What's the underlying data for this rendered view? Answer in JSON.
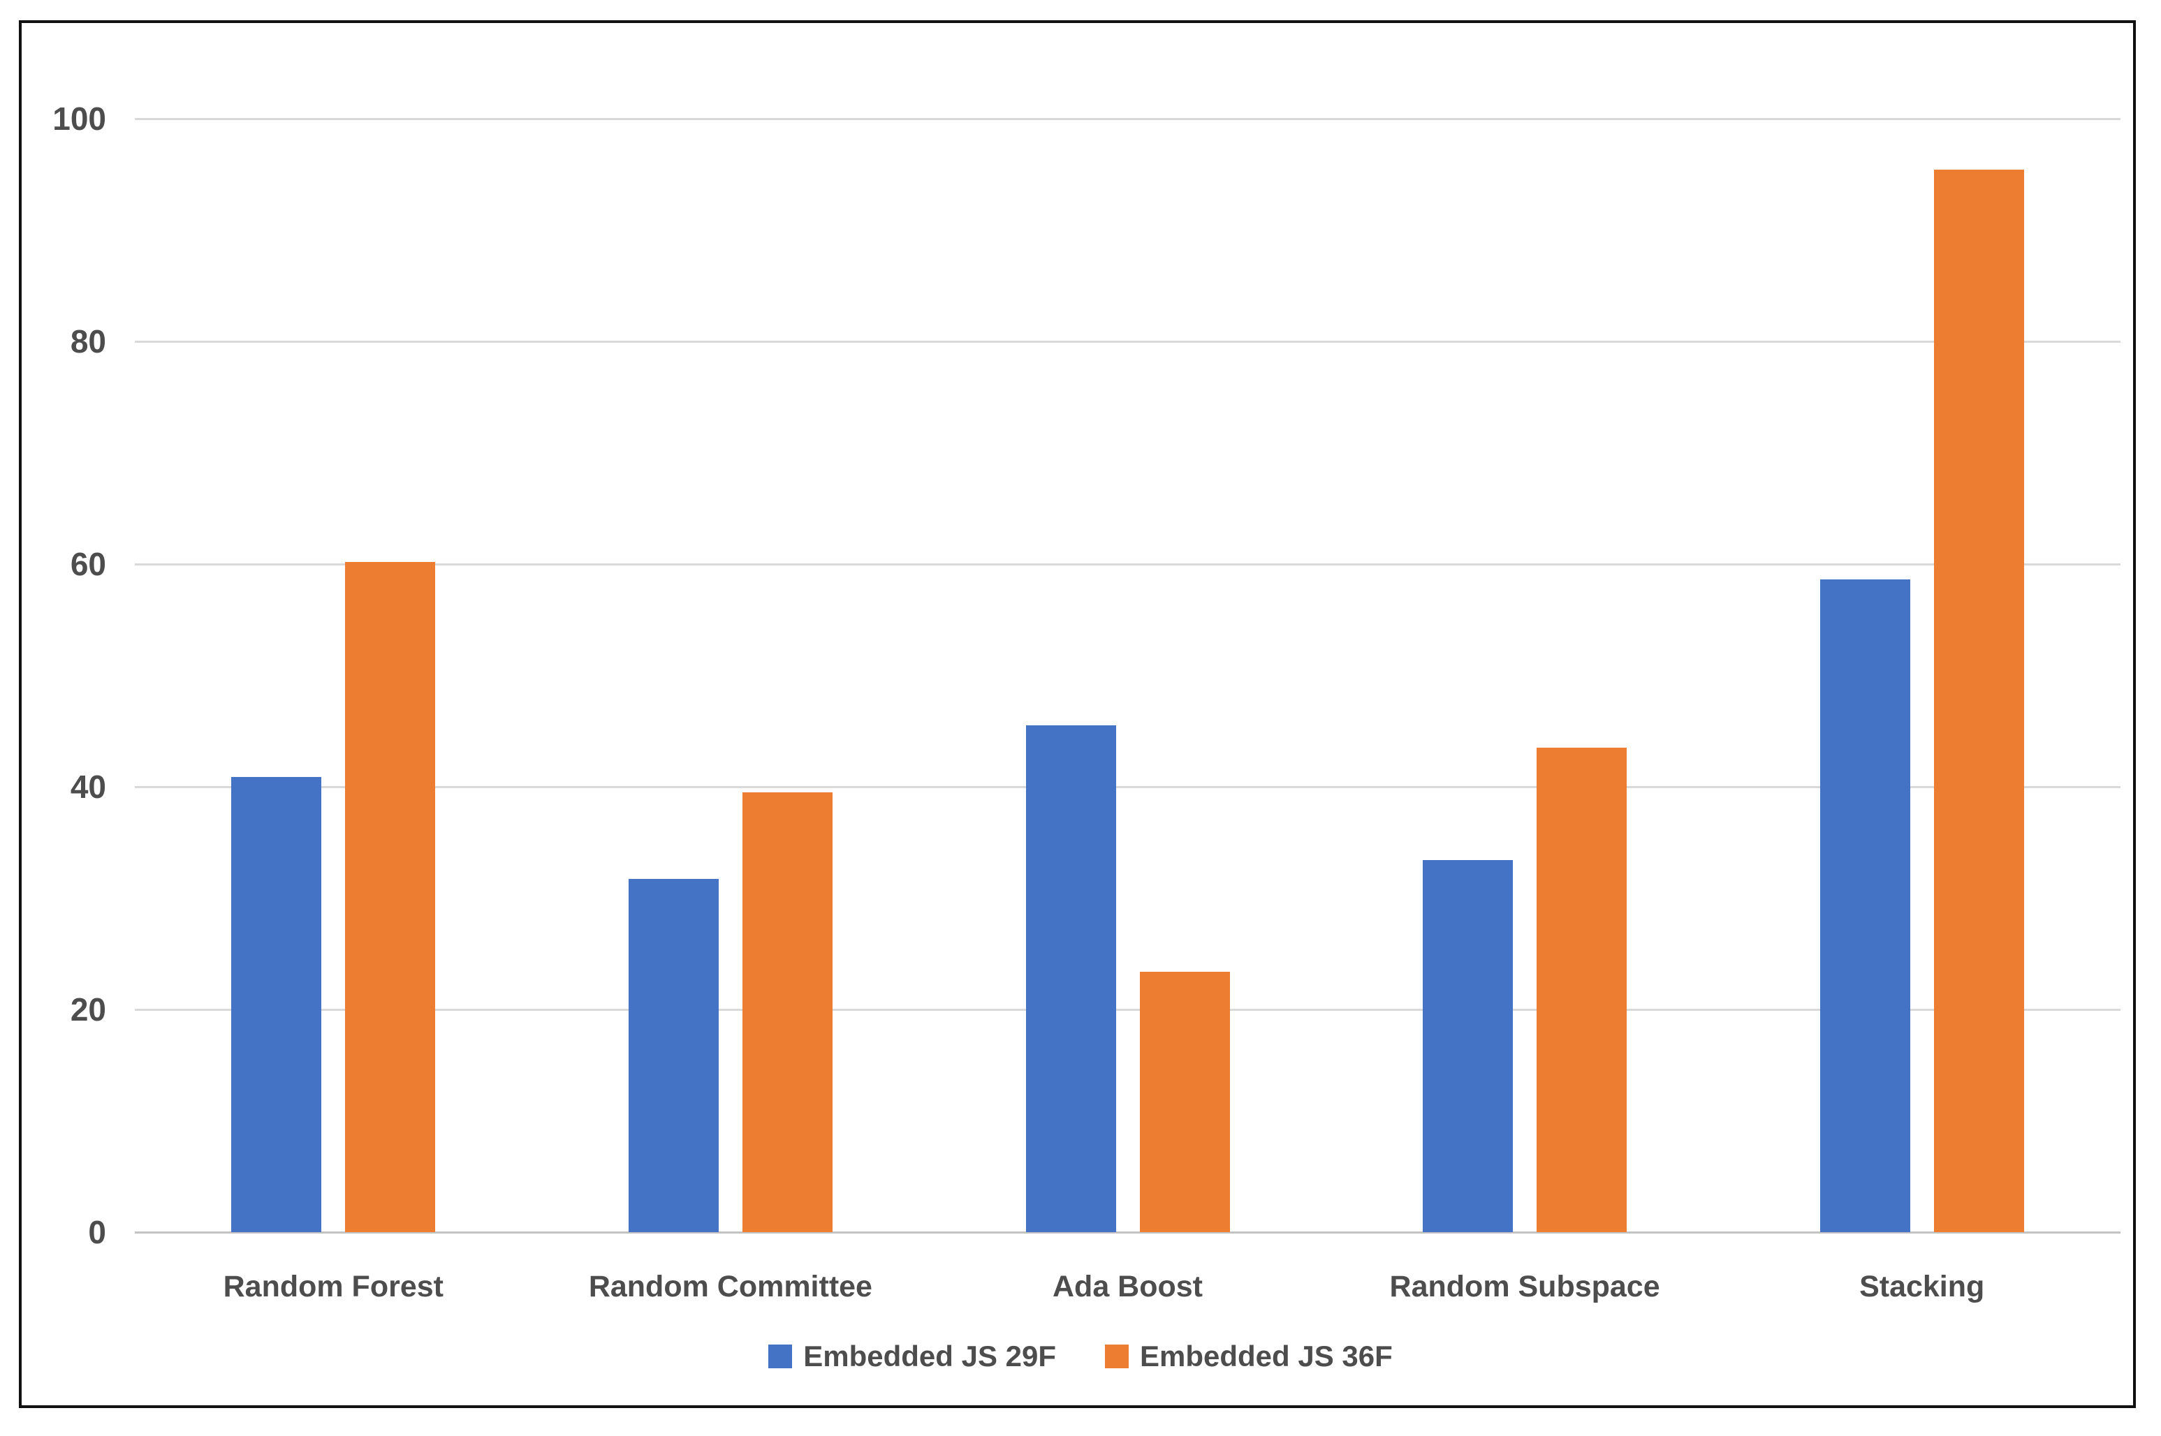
{
  "chart_data": {
    "type": "bar",
    "title": "",
    "xlabel": "",
    "ylabel": "",
    "categories": [
      "Random Forest",
      "Random Committee",
      "Ada Boost",
      "Random Subspace",
      "Stacking"
    ],
    "series": [
      {
        "name": "Embedded JS 29F",
        "color": "#4472C4",
        "values": [
          40.9,
          31.7,
          45.5,
          33.4,
          58.6
        ]
      },
      {
        "name": "Embedded JS 36F",
        "color": "#ED7D31",
        "values": [
          60.2,
          39.5,
          23.4,
          43.5,
          95.4
        ]
      }
    ],
    "y_axis": {
      "min": 0,
      "max": 100,
      "ticks": [
        0,
        20,
        40,
        60,
        80,
        100
      ]
    },
    "grid": true,
    "legend_position": "bottom"
  },
  "colors": {
    "series_1": "#4472C4",
    "series_2": "#ED7D31",
    "gridline": "#d9d9d9",
    "axis_line": "#c3c3c3",
    "label_text": "#4d4d4d",
    "frame_border": "#111111",
    "background": "#ffffff"
  }
}
